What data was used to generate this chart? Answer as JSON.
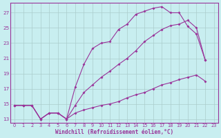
{
  "xlabel": "Windchill (Refroidissement éolien,°C)",
  "bg_color": "#c8eef0",
  "line_color": "#993399",
  "grid_color": "#aacccc",
  "xticks": [
    0,
    1,
    2,
    3,
    4,
    5,
    6,
    7,
    8,
    9,
    10,
    11,
    12,
    13,
    14,
    15,
    16,
    17,
    18,
    19,
    20,
    21,
    22,
    23
  ],
  "yticks": [
    13,
    15,
    17,
    19,
    21,
    23,
    25,
    27
  ],
  "line1_x": [
    0,
    1,
    2,
    3,
    4,
    5,
    6,
    7,
    8,
    9,
    10,
    11,
    12,
    13,
    14,
    15,
    16,
    17,
    18,
    19,
    20,
    21,
    22
  ],
  "line1_y": [
    14.8,
    14.8,
    14.8,
    13.0,
    13.8,
    13.8,
    13.0,
    17.2,
    20.2,
    22.3,
    23.0,
    23.2,
    24.8,
    25.5,
    26.8,
    27.2,
    27.6,
    27.8,
    27.0,
    27.0,
    25.2,
    24.2,
    20.8
  ],
  "line2_x": [
    0,
    1,
    2,
    3,
    4,
    5,
    6,
    7,
    8,
    9,
    10,
    11,
    12,
    13,
    14,
    15,
    16,
    17,
    18,
    19,
    20,
    21,
    22
  ],
  "line2_y": [
    14.8,
    14.8,
    14.8,
    13.0,
    13.8,
    13.8,
    13.0,
    14.8,
    16.5,
    17.5,
    18.5,
    19.3,
    20.2,
    21.0,
    22.0,
    23.2,
    24.0,
    24.8,
    25.3,
    25.5,
    26.0,
    25.0,
    20.8
  ],
  "line3_x": [
    0,
    1,
    2,
    3,
    4,
    5,
    6,
    7,
    8,
    9,
    10,
    11,
    12,
    13,
    14,
    15,
    16,
    17,
    18,
    19,
    20,
    21,
    22
  ],
  "line3_y": [
    14.8,
    14.8,
    14.8,
    13.0,
    13.8,
    13.8,
    13.0,
    13.8,
    14.2,
    14.5,
    14.8,
    15.0,
    15.3,
    15.8,
    16.2,
    16.5,
    17.0,
    17.5,
    17.8,
    18.2,
    18.5,
    18.8,
    18.0
  ]
}
